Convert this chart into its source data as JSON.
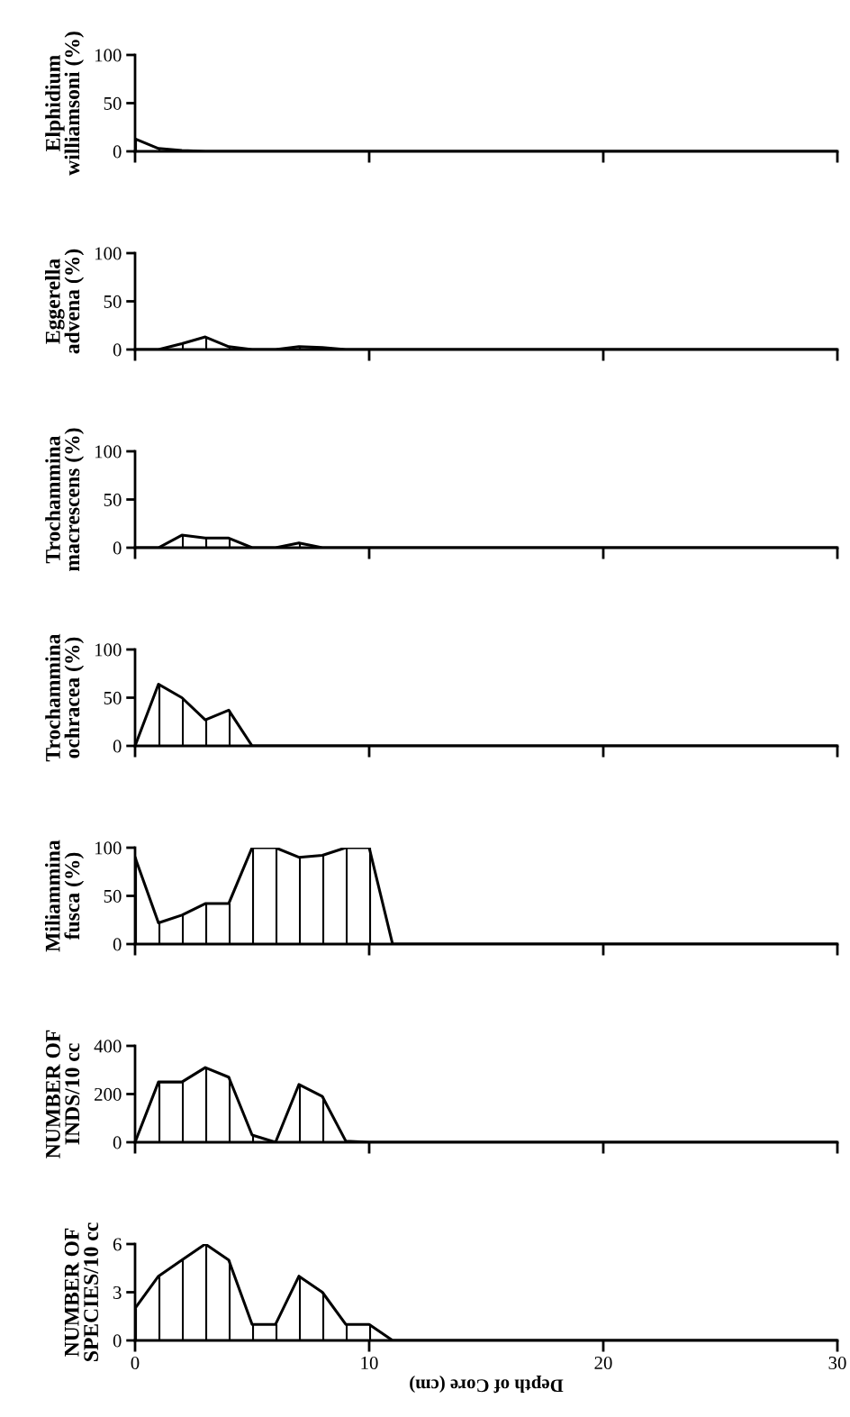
{
  "chart_data": [
    {
      "type": "line",
      "ylabel": "Elphidium\nwilliamsoni (%)",
      "x": [
        0,
        1,
        2,
        3,
        4,
        5,
        6,
        7,
        8,
        9,
        10,
        11,
        30
      ],
      "series": [
        {
          "color": "#000000",
          "values": [
            13,
            3,
            1,
            0,
            0,
            0,
            0,
            0,
            0,
            0,
            0,
            0,
            0
          ]
        },
        {
          "type": "bar",
          "color": "#000000",
          "values": [
            13,
            3,
            1,
            0,
            0,
            0,
            0,
            0,
            0,
            0,
            0,
            0,
            0
          ]
        }
      ],
      "xlim": [
        0,
        30
      ],
      "xticks": [
        0,
        10,
        20,
        30
      ],
      "ylim": [
        0,
        100
      ],
      "yticks": [
        0,
        50,
        100
      ],
      "tick_labels": "y"
    },
    {
      "type": "line",
      "ylabel": "Eggerella\nadvena (%)",
      "x": [
        0,
        1,
        2,
        3,
        4,
        5,
        6,
        7,
        8,
        9,
        10,
        11,
        30
      ],
      "series": [
        {
          "color": "#000000",
          "values": [
            0,
            0,
            6,
            13,
            3,
            0,
            0,
            3,
            2,
            0,
            0,
            0,
            0
          ]
        },
        {
          "type": "bar",
          "color": "#000000",
          "values": [
            0,
            0,
            6,
            13,
            3,
            0,
            0,
            3,
            null,
            0,
            0,
            0,
            0
          ]
        }
      ],
      "xlim": [
        0,
        30
      ],
      "xticks": [
        0,
        10,
        20,
        30
      ],
      "ylim": [
        0,
        100
      ],
      "yticks": [
        0,
        50,
        100
      ],
      "tick_labels": "y"
    },
    {
      "type": "line",
      "ylabel": "Trochammina\nmacrescens (%)",
      "x": [
        0,
        1,
        2,
        3,
        4,
        5,
        6,
        7,
        8,
        9,
        10,
        11,
        30
      ],
      "series": [
        {
          "color": "#000000",
          "values": [
            0,
            0,
            13,
            10,
            10,
            0,
            0,
            5,
            0,
            0,
            0,
            0,
            0
          ]
        },
        {
          "type": "bar",
          "color": "#000000",
          "values": [
            0,
            0,
            13,
            10,
            10,
            0,
            0,
            5,
            0,
            0,
            0,
            0,
            0
          ]
        }
      ],
      "xlim": [
        0,
        30
      ],
      "xticks": [
        0,
        10,
        20,
        30
      ],
      "ylim": [
        0,
        100
      ],
      "yticks": [
        0,
        50,
        100
      ],
      "tick_labels": "y"
    },
    {
      "type": "line",
      "ylabel": "Trochammina\nochracea (%)",
      "x": [
        0,
        1,
        2,
        3,
        4,
        5,
        6,
        7,
        8,
        9,
        10,
        11,
        30
      ],
      "series": [
        {
          "color": "#000000",
          "values": [
            0,
            64,
            50,
            27,
            37,
            0,
            0,
            0,
            0,
            0,
            0,
            0,
            0
          ]
        },
        {
          "type": "bar",
          "color": "#000000",
          "values": [
            0,
            64,
            50,
            27,
            37,
            0,
            0,
            0,
            0,
            0,
            0,
            0,
            0
          ]
        }
      ],
      "xlim": [
        0,
        30
      ],
      "xticks": [
        0,
        10,
        20,
        30
      ],
      "ylim": [
        0,
        100
      ],
      "yticks": [
        0,
        50,
        100
      ],
      "tick_labels": "y"
    },
    {
      "type": "line",
      "ylabel": "Miliammina\nfusca (%)",
      "x": [
        0,
        1,
        2,
        3,
        4,
        5,
        6,
        7,
        8,
        9,
        10,
        11,
        30
      ],
      "series": [
        {
          "color": "#000000",
          "values": [
            90,
            22,
            30,
            42,
            42,
            100,
            100,
            90,
            92,
            100,
            100,
            0,
            0
          ]
        },
        {
          "type": "bar",
          "color": "#000000",
          "values": [
            90,
            22,
            30,
            42,
            42,
            100,
            100,
            90,
            92,
            100,
            100,
            0,
            0
          ]
        }
      ],
      "xlim": [
        0,
        30
      ],
      "xticks": [
        0,
        10,
        20,
        30
      ],
      "ylim": [
        0,
        100
      ],
      "yticks": [
        0,
        50,
        100
      ],
      "tick_labels": "y"
    },
    {
      "type": "line",
      "ylabel": "NUMBER OF\nINDS/10 cc",
      "x": [
        0,
        1,
        2,
        3,
        4,
        5,
        6,
        7,
        8,
        9,
        10,
        11,
        30
      ],
      "series": [
        {
          "color": "#000000",
          "values": [
            0,
            250,
            250,
            310,
            270,
            30,
            0,
            240,
            190,
            5,
            0,
            0,
            0
          ]
        },
        {
          "type": "bar",
          "color": "#000000",
          "values": [
            0,
            250,
            250,
            310,
            270,
            30,
            0,
            240,
            190,
            5,
            0,
            0,
            0
          ]
        }
      ],
      "xlim": [
        0,
        30
      ],
      "xticks": [
        0,
        10,
        20,
        30
      ],
      "ylim": [
        0,
        400
      ],
      "yticks": [
        0,
        200,
        400
      ],
      "tick_labels": "y"
    },
    {
      "type": "line",
      "ylabel": "NUMBER OF\nSPECIES/10 cc",
      "xlabel": "Depth of Core (cm)",
      "x": [
        0,
        1,
        2,
        3,
        4,
        5,
        6,
        7,
        8,
        9,
        10,
        11,
        30
      ],
      "series": [
        {
          "color": "#000000",
          "values": [
            2,
            4,
            5,
            6,
            5,
            1,
            1,
            4,
            3,
            1,
            1,
            0,
            0
          ]
        },
        {
          "type": "bar",
          "color": "#000000",
          "values": [
            2,
            4,
            5,
            6,
            5,
            1,
            1,
            4,
            3,
            1,
            1,
            0,
            0
          ]
        }
      ],
      "xlim": [
        0,
        30
      ],
      "xticks": [
        0,
        10,
        20,
        30
      ],
      "ylim": [
        0,
        6
      ],
      "yticks": [
        0,
        3,
        6
      ]
    }
  ]
}
